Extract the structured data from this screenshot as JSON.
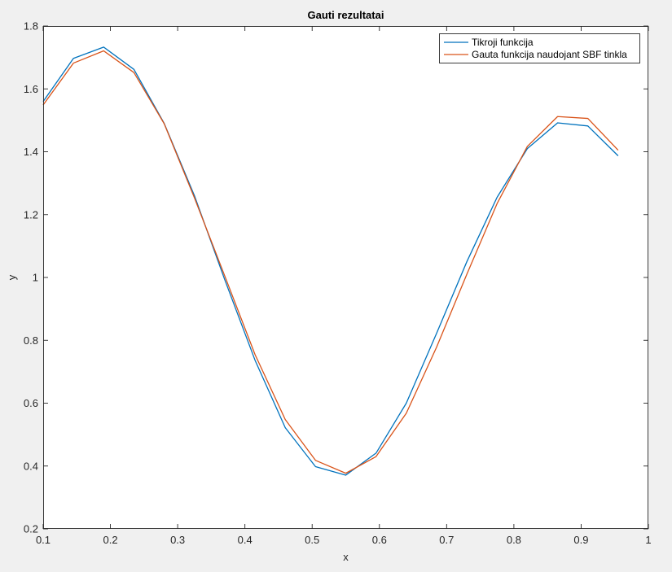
{
  "colors": {
    "figure_background": "#f0f0f0",
    "axes_background": "#ffffff",
    "axis": "#262626",
    "series_1": "#0072bd",
    "series_2": "#d95319"
  },
  "chart_data": {
    "type": "line",
    "title": "Gauti rezultatai",
    "xlabel": "x",
    "ylabel": "y",
    "xlim": [
      0.1,
      1
    ],
    "ylim": [
      0.2,
      1.8
    ],
    "grid": false,
    "legend_position": "top-right",
    "xticks": [
      "0.1",
      "0.2",
      "0.3",
      "0.4",
      "0.5",
      "0.6",
      "0.7",
      "0.8",
      "0.9",
      "1"
    ],
    "yticks": [
      "0.2",
      "0.4",
      "0.6",
      "0.8",
      "1",
      "1.2",
      "1.4",
      "1.6",
      "1.8"
    ],
    "x": [
      0.1,
      0.145,
      0.19,
      0.235,
      0.28,
      0.325,
      0.37,
      0.415,
      0.46,
      0.505,
      0.55,
      0.595,
      0.64,
      0.685,
      0.73,
      0.775,
      0.82,
      0.865,
      0.91,
      0.955
    ],
    "series": [
      {
        "name": "Tikroji funkcija",
        "values": [
          1.56,
          1.697,
          1.733,
          1.662,
          1.49,
          1.26,
          0.993,
          0.737,
          0.522,
          0.398,
          0.371,
          0.441,
          0.6,
          0.822,
          1.05,
          1.255,
          1.41,
          1.492,
          1.482,
          1.387
        ]
      },
      {
        "name": "Gauta funkcija naudojant SBF tinkla",
        "values": [
          1.549,
          1.682,
          1.721,
          1.652,
          1.489,
          1.253,
          1.005,
          0.755,
          0.548,
          0.418,
          0.377,
          0.43,
          0.568,
          0.778,
          1.01,
          1.235,
          1.417,
          1.512,
          1.506,
          1.405
        ]
      }
    ]
  }
}
